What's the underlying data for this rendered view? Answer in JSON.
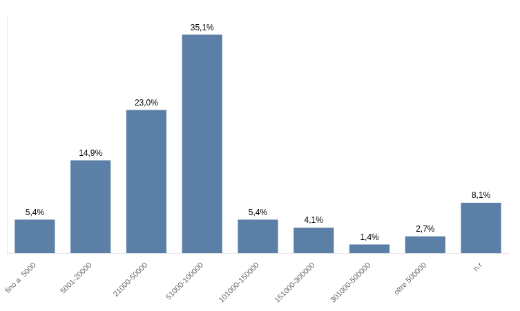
{
  "chart_data": {
    "type": "bar",
    "categories": [
      "fino a  5000",
      "5001-20000",
      "21000-50000",
      "51000-100000",
      "101000-150000",
      "151000-300000",
      "301000-500000",
      "oltre 500000",
      "n.r"
    ],
    "values": [
      5.4,
      14.9,
      23.0,
      35.1,
      5.4,
      4.1,
      1.4,
      2.7,
      8.1
    ],
    "value_labels": [
      "5,4%",
      "14,9%",
      "23,0%",
      "35,1%",
      "5,4%",
      "4,1%",
      "1,4%",
      "2,7%",
      "8,1%"
    ],
    "data_labels": true,
    "color": "#5B7FA6",
    "ylim": [
      0,
      38
    ],
    "grid": false,
    "tick_labels": "x"
  }
}
